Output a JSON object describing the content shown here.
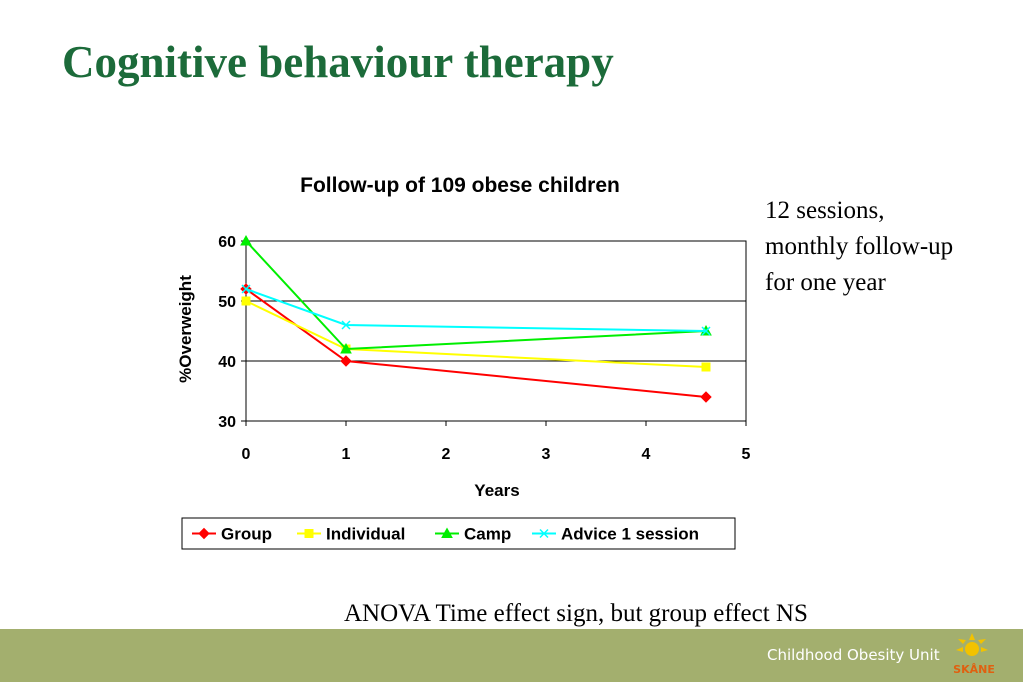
{
  "slide": {
    "title": "Cognitive behaviour therapy",
    "note_lines": [
      "12 sessions,",
      "monthly follow-up",
      "for one year"
    ],
    "anova_text": "ANOVA Time effect sign, but group effect NS",
    "footer_text": "Childhood Obesity Unit",
    "logo_text": "SKÅNE",
    "colors": {
      "title": "#1c6b3a",
      "footer": "#a3af6e",
      "logo": "#f2c200"
    }
  },
  "chart_data": {
    "type": "line",
    "title": "Follow-up of 109 obese children",
    "xlabel": "Years",
    "ylabel": "%Overweight",
    "xlim": [
      0,
      5
    ],
    "ylim": [
      30,
      60
    ],
    "xticks": [
      0,
      1,
      2,
      3,
      4,
      5
    ],
    "yticks": [
      30,
      40,
      50,
      60
    ],
    "grid": "horizontal",
    "legend_position": "bottom",
    "series": [
      {
        "name": "Group",
        "color": "#ff0000",
        "marker": "diamond",
        "x": [
          0,
          1,
          4.6
        ],
        "y": [
          52,
          40,
          34
        ]
      },
      {
        "name": "Individual",
        "color": "#ffff00",
        "marker": "square",
        "x": [
          0,
          1,
          4.6
        ],
        "y": [
          50,
          42,
          39
        ]
      },
      {
        "name": "Camp",
        "color": "#00ee00",
        "marker": "triangle",
        "x": [
          0,
          1,
          4.6
        ],
        "y": [
          60,
          42,
          45
        ]
      },
      {
        "name": "Advice 1 session",
        "color": "#00ffff",
        "marker": "x",
        "x": [
          0,
          1,
          4.6
        ],
        "y": [
          52,
          46,
          45
        ]
      }
    ]
  }
}
